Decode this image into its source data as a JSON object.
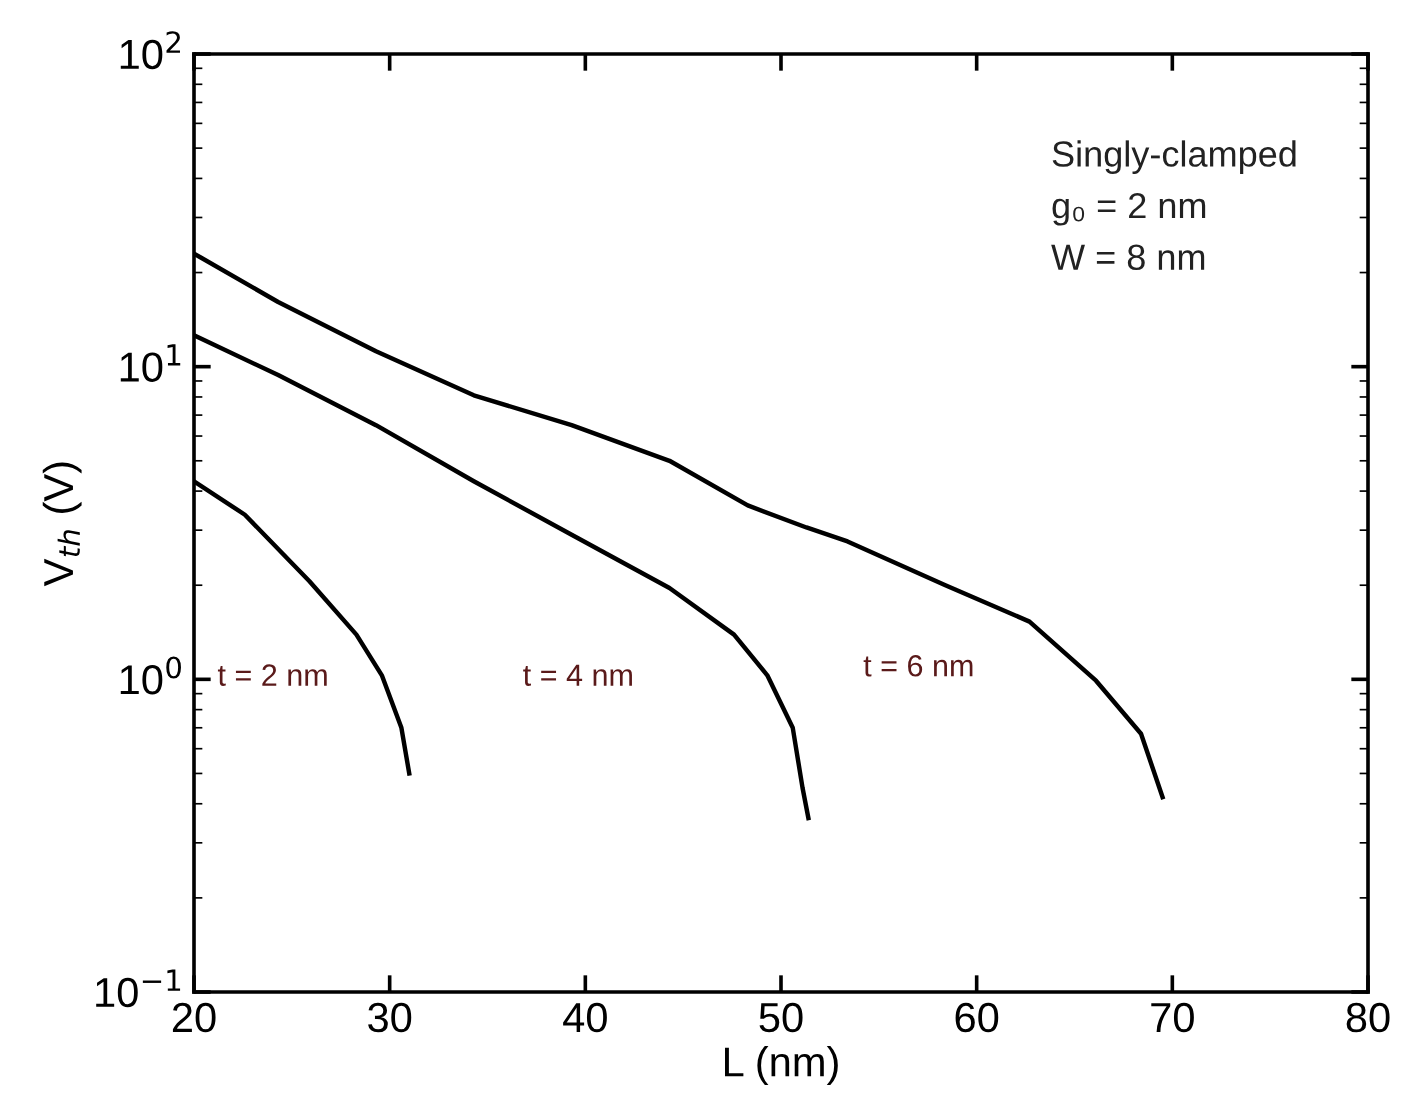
{
  "chart_data": {
    "type": "line",
    "xlabel": "L (nm)",
    "ylabel": "V$_{th}$ (V)",
    "log": "y",
    "grid": false,
    "legend": false,
    "marker": "none",
    "line_style": "solid",
    "xlim": [
      20,
      80
    ],
    "xticks": [
      20,
      30,
      40,
      50,
      60,
      70,
      80
    ],
    "ylim": [
      0.1,
      100
    ],
    "yticks": [
      {
        "value": 0.1,
        "label": "10$^{−1}$"
      },
      {
        "value": 1,
        "label": "10$^{0}$"
      },
      {
        "value": 10,
        "label": "10$^{1}$"
      },
      {
        "value": 100,
        "label": "10$^{2}$"
      }
    ],
    "series": [
      {
        "color": "#000000",
        "x": [
          20,
          24.3,
          29.3,
          34.3,
          39.3,
          44.3,
          48.3,
          51.3,
          53.4,
          58.4,
          62.7,
          66.1,
          68.4,
          69.5
        ],
        "values": [
          23,
          16.1,
          11.2,
          8.1,
          6.5,
          5.0,
          3.6,
          3.06,
          2.76,
          2.0,
          1.53,
          0.99,
          0.67,
          0.42
        ]
      },
      {
        "color": "#000000",
        "x": [
          20,
          24.3,
          29.3,
          34.3,
          39.3,
          44.3,
          47.6,
          49.3,
          50.6,
          51.1,
          51.4
        ],
        "values": [
          12.6,
          9.4,
          6.5,
          4.3,
          2.9,
          1.96,
          1.39,
          1.03,
          0.7,
          0.45,
          0.36
        ]
      },
      {
        "color": "#000000",
        "x": [
          20,
          22.6,
          25.9,
          28.3,
          29.6,
          30.6,
          31.0
        ],
        "values": [
          4.3,
          3.36,
          2.06,
          1.39,
          1.03,
          0.7,
          0.5
        ]
      }
    ],
    "annotations": [
      "t = 2 nm",
      "t = 4 nm",
      "t = 6 nm",
      "Singly-clamped",
      "g₀ = 2 nm",
      "W = 8 nm"
    ]
  }
}
